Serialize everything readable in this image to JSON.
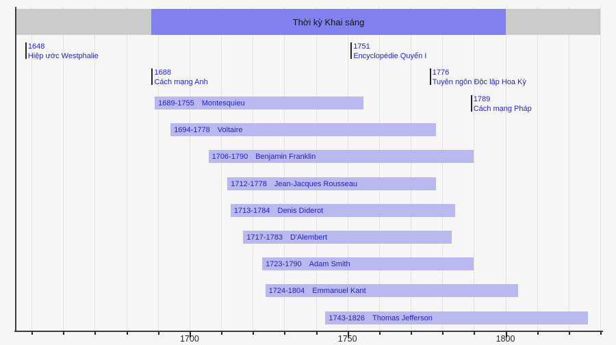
{
  "chart_data": {
    "type": "bar",
    "subtype": "timeline-gantt",
    "title": "Thời kỳ Khai sáng",
    "period": {
      "start": 1688,
      "end": 1800
    },
    "x_axis": {
      "min": 1645,
      "max": 1830,
      "ticks": [
        "1700",
        "1750",
        "1800"
      ],
      "tick_years": [
        1700,
        1750,
        1800
      ],
      "minor_tick_interval": 10,
      "grid": true
    },
    "events": [
      {
        "year": 1648,
        "label": "Hiệp ước Westphalie",
        "level": 0
      },
      {
        "year": 1688,
        "label": "Cách mạng Anh",
        "level": 1
      },
      {
        "year": 1751,
        "label": "Encyclopédie Quyển I",
        "level": 0
      },
      {
        "year": 1776,
        "label": "Tuyên ngôn Độc lập Hoa Kỳ",
        "level": 1
      },
      {
        "year": 1789,
        "label": "Cách mạng Pháp",
        "level": 2
      }
    ],
    "people": [
      {
        "start": 1689,
        "end": 1755,
        "years": "1689-1755",
        "name": "Montesquieu"
      },
      {
        "start": 1694,
        "end": 1778,
        "years": "1694-1778",
        "name": "Voltaire"
      },
      {
        "start": 1706,
        "end": 1790,
        "years": "1706-1790",
        "name": "Benjamin Franklin"
      },
      {
        "start": 1712,
        "end": 1778,
        "years": "1712-1778",
        "name": "Jean-Jacques Rousseau"
      },
      {
        "start": 1713,
        "end": 1784,
        "years": "1713-1784",
        "name": "Denis Diderot"
      },
      {
        "start": 1717,
        "end": 1783,
        "years": "1717-1783",
        "name": "D'Alembert"
      },
      {
        "start": 1723,
        "end": 1790,
        "years": "1723-1790",
        "name": "Adam Smith"
      },
      {
        "start": 1724,
        "end": 1804,
        "years": "1724-1804",
        "name": "Emmanuel Kant"
      },
      {
        "start": 1743,
        "end": 1826,
        "years": "1743-1826",
        "name": "Thomas Jefferson"
      }
    ]
  },
  "colors": {
    "background": "#f6f6f6",
    "period_track": "#cbcbcb",
    "period_fill": "#8080ee",
    "person_bar_fill": "#b9b9f0",
    "text_blue": "#2222c8",
    "title_text": "#111111",
    "axis": "#3c3c3c",
    "grid": "#e2e2e2"
  }
}
